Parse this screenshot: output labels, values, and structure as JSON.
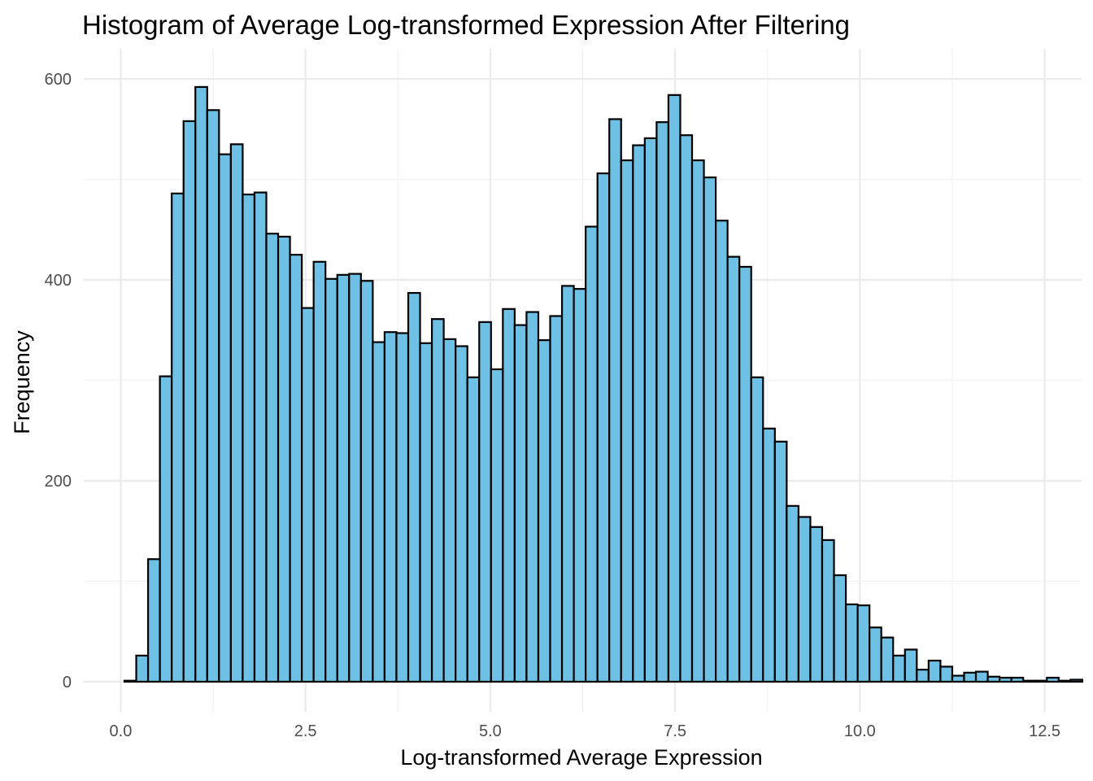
{
  "chart_data": {
    "type": "bar",
    "title": "Histogram of Average Log-transformed Expression After Filtering",
    "xlabel": "Log-transformed Average Expression",
    "ylabel": "Frequency",
    "xlim": [
      -0.5,
      13.0
    ],
    "ylim": [
      -30,
      630
    ],
    "xticks": [
      0.0,
      2.5,
      5.0,
      7.5,
      10.0,
      12.5
    ],
    "xtick_labels": [
      "0.0",
      "2.5",
      "5.0",
      "7.5",
      "10.0",
      "12.5"
    ],
    "yticks": [
      0,
      200,
      400,
      600
    ],
    "ytick_labels": [
      "0",
      "200",
      "400",
      "600"
    ],
    "grid": true,
    "bin_start": 0.05,
    "bin_width": 0.16,
    "bar_color": "#6EC1E4",
    "edge_color": "#000000",
    "values": [
      1,
      26,
      122,
      304,
      486,
      558,
      592,
      569,
      525,
      535,
      485,
      487,
      446,
      443,
      425,
      372,
      418,
      401,
      405,
      406,
      399,
      338,
      348,
      347,
      387,
      337,
      361,
      341,
      334,
      303,
      358,
      311,
      371,
      355,
      368,
      340,
      364,
      394,
      391,
      453,
      506,
      560,
      519,
      534,
      541,
      557,
      584,
      544,
      519,
      502,
      459,
      423,
      413,
      303,
      252,
      239,
      175,
      164,
      154,
      141,
      106,
      77,
      76,
      54,
      44,
      26,
      32,
      12,
      21,
      15,
      6,
      9,
      10,
      5,
      4,
      4,
      1,
      1,
      4,
      1,
      2
    ]
  }
}
